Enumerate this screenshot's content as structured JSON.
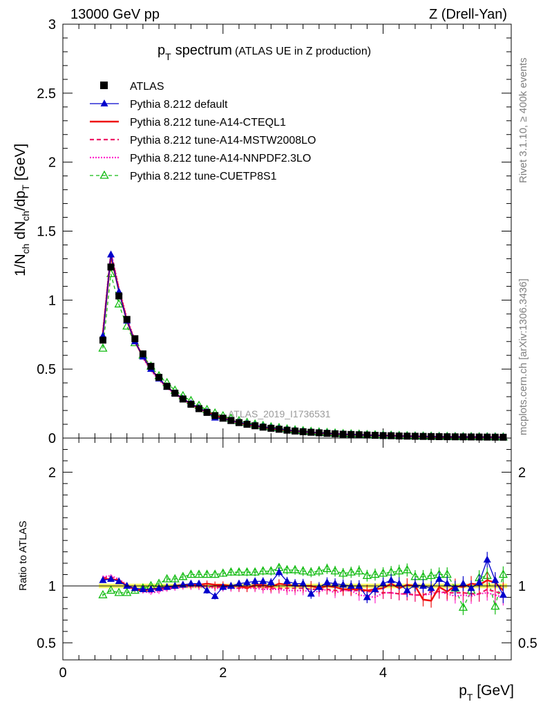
{
  "header": {
    "left": "13000 GeV pp",
    "right": "Z (Drell-Yan)"
  },
  "side_labels": {
    "rivet": "Rivet 3.1.10, ≥ 400k events",
    "mcplots": "mcplots.cern.ch [arXiv:1306.3436]"
  },
  "watermark": "ATLAS_2019_I1736531",
  "colors": {
    "atlas": "#000000",
    "default": "#0000cc",
    "cteql1": "#ee1111",
    "mstw": "#ee1166",
    "nnpdf": "#ff22cc",
    "cuetp8s1": "#11bb11",
    "band": "#ffff66"
  },
  "chart_data": [
    {
      "type": "line",
      "id": "main",
      "title_main": "p",
      "title_sub": "T",
      "title_rest": "spectrum",
      "title_paren": "(ATLAS UE in Z production)",
      "xlabel": "p_T [GeV]",
      "ylabel": "1/N_ch dN_ch/dp_T [GeV]",
      "xlim": [
        0,
        5.6
      ],
      "ylim": [
        0,
        3
      ],
      "yticks": [
        "0",
        "0.5",
        "1",
        "1.5",
        "2",
        "2.5",
        "3"
      ],
      "legend": [
        {
          "key": "atlas",
          "label": "ATLAS"
        },
        {
          "key": "default",
          "label": "Pythia 8.212 default"
        },
        {
          "key": "cteql1",
          "label": "Pythia 8.212 tune-A14-CTEQL1"
        },
        {
          "key": "mstw",
          "label": "Pythia 8.212 tune-A14-MSTW2008LO"
        },
        {
          "key": "nnpdf",
          "label": "Pythia 8.212 tune-A14-NNPDF2.3LO"
        },
        {
          "key": "cuetp8s1",
          "label": "Pythia 8.212 tune-CUETP8S1"
        }
      ],
      "x": [
        0.5,
        0.6,
        0.7,
        0.8,
        0.9,
        1.0,
        1.1,
        1.2,
        1.3,
        1.4,
        1.5,
        1.6,
        1.7,
        1.8,
        1.9,
        2.0,
        2.1,
        2.2,
        2.3,
        2.4,
        2.5,
        2.6,
        2.7,
        2.8,
        2.9,
        3.0,
        3.1,
        3.2,
        3.3,
        3.4,
        3.5,
        3.6,
        3.7,
        3.8,
        3.9,
        4.0,
        4.1,
        4.2,
        4.3,
        4.4,
        4.5,
        4.6,
        4.7,
        4.8,
        4.9,
        5.0,
        5.1,
        5.2,
        5.3,
        5.4,
        5.5
      ],
      "atlas": [
        0.71,
        1.24,
        1.03,
        0.86,
        0.72,
        0.61,
        0.52,
        0.44,
        0.375,
        0.325,
        0.283,
        0.245,
        0.213,
        0.186,
        0.163,
        0.144,
        0.127,
        0.112,
        0.1,
        0.089,
        0.079,
        0.071,
        0.064,
        0.057,
        0.051,
        0.046,
        0.042,
        0.038,
        0.034,
        0.031,
        0.028,
        0.026,
        0.024,
        0.022,
        0.02,
        0.018,
        0.017,
        0.015,
        0.014,
        0.013,
        0.012,
        0.011,
        0.01,
        0.0095,
        0.009,
        0.0085,
        0.008,
        0.0075,
        0.007,
        0.0065,
        0.006
      ],
      "default": [
        0.74,
        1.33,
        1.06,
        0.85,
        0.7,
        0.59,
        0.5,
        0.43,
        0.37,
        0.325,
        0.285,
        0.25,
        0.218,
        0.19,
        0.147,
        0.142,
        0.127,
        0.114,
        0.103,
        0.092,
        0.082,
        0.073,
        0.067,
        0.059,
        0.052,
        0.047,
        0.042,
        0.038,
        0.035,
        0.031,
        0.028,
        0.026,
        0.024,
        0.021,
        0.019,
        0.018,
        0.017,
        0.015,
        0.014,
        0.013,
        0.012,
        0.011,
        0.0105,
        0.0095,
        0.009,
        0.0085,
        0.008,
        0.0078,
        0.0074,
        0.0068,
        0.006
      ],
      "cteql1": [
        0.75,
        1.32,
        1.07,
        0.85,
        0.7,
        0.59,
        0.5,
        0.43,
        0.37,
        0.325,
        0.285,
        0.248,
        0.215,
        0.19,
        0.165,
        0.145,
        0.128,
        0.112,
        0.098,
        0.09,
        0.08,
        0.07,
        0.065,
        0.057,
        0.051,
        0.046,
        0.042,
        0.037,
        0.034,
        0.031,
        0.027,
        0.025,
        0.023,
        0.021,
        0.019,
        0.018,
        0.018,
        0.015,
        0.014,
        0.013,
        0.0105,
        0.0095,
        0.0095,
        0.009,
        0.009,
        0.0085,
        0.008,
        0.0075,
        0.0075,
        0.0068,
        0.0058
      ],
      "mstw": [
        0.76,
        1.34,
        1.08,
        0.86,
        0.7,
        0.59,
        0.5,
        0.43,
        0.37,
        0.322,
        0.282,
        0.246,
        0.213,
        0.186,
        0.162,
        0.143,
        0.126,
        0.11,
        0.1,
        0.088,
        0.078,
        0.07,
        0.063,
        0.056,
        0.05,
        0.045,
        0.041,
        0.037,
        0.033,
        0.03,
        0.027,
        0.025,
        0.023,
        0.021,
        0.019,
        0.017,
        0.016,
        0.014,
        0.013,
        0.012,
        0.011,
        0.0105,
        0.0095,
        0.009,
        0.0085,
        0.008,
        0.0075,
        0.007,
        0.0068,
        0.0062,
        0.0056
      ],
      "nnpdf": [
        0.77,
        1.35,
        1.09,
        0.87,
        0.71,
        0.58,
        0.49,
        0.42,
        0.365,
        0.32,
        0.28,
        0.244,
        0.212,
        0.185,
        0.161,
        0.142,
        0.125,
        0.11,
        0.098,
        0.087,
        0.077,
        0.069,
        0.062,
        0.055,
        0.049,
        0.044,
        0.04,
        0.036,
        0.033,
        0.029,
        0.027,
        0.025,
        0.022,
        0.02,
        0.018,
        0.017,
        0.016,
        0.014,
        0.013,
        0.012,
        0.011,
        0.0102,
        0.0095,
        0.0088,
        0.0082,
        0.0078,
        0.0073,
        0.007,
        0.0066,
        0.006,
        0.0054
      ],
      "cuetp8s1": [
        0.65,
        1.19,
        0.97,
        0.81,
        0.69,
        0.6,
        0.52,
        0.45,
        0.4,
        0.345,
        0.305,
        0.27,
        0.235,
        0.205,
        0.18,
        0.16,
        0.142,
        0.125,
        0.112,
        0.1,
        0.089,
        0.08,
        0.074,
        0.065,
        0.058,
        0.052,
        0.047,
        0.043,
        0.039,
        0.035,
        0.031,
        0.029,
        0.027,
        0.024,
        0.022,
        0.02,
        0.019,
        0.017,
        0.016,
        0.014,
        0.013,
        0.012,
        0.011,
        0.0105,
        0.0098,
        0.0092,
        0.0086,
        0.008,
        0.0076,
        0.0072,
        0.0064
      ]
    },
    {
      "type": "line",
      "id": "ratio",
      "ylabel": "Ratio to ATLAS",
      "xlabel": "p_T [GeV]",
      "xlim": [
        0,
        5.6
      ],
      "ylim": [
        0.35,
        2.3
      ],
      "yticks": [
        "0.5",
        "1",
        "2"
      ],
      "yticks_right": [
        "0.5",
        "1",
        "2"
      ],
      "xticks": [
        "0",
        "2",
        "4"
      ],
      "x": [
        0.5,
        0.6,
        0.7,
        0.8,
        0.9,
        1.0,
        1.1,
        1.2,
        1.3,
        1.4,
        1.5,
        1.6,
        1.7,
        1.8,
        1.9,
        2.0,
        2.1,
        2.2,
        2.3,
        2.4,
        2.5,
        2.6,
        2.7,
        2.8,
        2.9,
        3.0,
        3.1,
        3.2,
        3.3,
        3.4,
        3.5,
        3.6,
        3.7,
        3.8,
        3.9,
        4.0,
        4.1,
        4.2,
        4.3,
        4.4,
        4.5,
        4.6,
        4.7,
        4.8,
        4.9,
        5.0,
        5.1,
        5.2,
        5.3,
        5.4,
        5.5
      ],
      "default": [
        1.05,
        1.06,
        1.04,
        1.0,
        0.98,
        0.97,
        0.97,
        0.98,
        0.99,
        1.0,
        1.01,
        1.02,
        1.02,
        0.96,
        0.91,
        0.99,
        1.0,
        1.02,
        1.03,
        1.04,
        1.04,
        1.03,
        1.12,
        1.04,
        1.02,
        1.02,
        0.93,
        0.99,
        1.03,
        1.02,
        1.01,
        1.0,
        1.0,
        0.9,
        0.97,
        1.02,
        1.05,
        1.02,
        0.96,
        1.01,
        1.0,
        0.98,
        1.06,
        1.02,
        0.98,
        1.02,
        0.98,
        1.03,
        1.23,
        1.05,
        0.92
      ],
      "cteql1": [
        1.06,
        1.06,
        1.05,
        1.0,
        0.97,
        0.96,
        0.97,
        0.98,
        0.99,
        1.0,
        1.01,
        1.01,
        1.01,
        1.02,
        1.01,
        1.01,
        1.0,
        1.0,
        0.98,
        1.01,
        1.01,
        0.99,
        1.02,
        1.01,
        1.0,
        1.0,
        1.0,
        0.98,
        1.0,
        0.99,
        0.97,
        0.97,
        0.97,
        0.96,
        0.97,
        0.98,
        1.02,
        0.98,
        1.01,
        1.0,
        0.88,
        0.87,
        0.99,
        0.95,
        1.0,
        0.99,
        1.02,
        1.01,
        1.05,
        1.03,
        0.96
      ],
      "mstw": [
        1.07,
        1.08,
        1.05,
        1.0,
        0.97,
        0.96,
        0.96,
        0.97,
        0.98,
        0.99,
        1.0,
        1.0,
        1.0,
        1.0,
        0.99,
        0.99,
        0.99,
        0.98,
        1.0,
        0.99,
        0.99,
        0.98,
        0.98,
        0.98,
        0.98,
        0.98,
        0.97,
        0.97,
        0.97,
        0.96,
        0.96,
        0.96,
        0.96,
        0.95,
        0.95,
        0.94,
        0.94,
        0.93,
        0.93,
        0.92,
        0.92,
        0.95,
        0.95,
        0.94,
        0.94,
        0.94,
        0.93,
        0.93,
        0.97,
        0.95,
        0.93
      ],
      "nnpdf": [
        1.08,
        1.09,
        1.06,
        1.01,
        0.98,
        0.95,
        0.94,
        0.95,
        0.97,
        0.98,
        0.99,
        0.99,
        0.99,
        0.99,
        0.98,
        0.98,
        0.98,
        0.98,
        0.98,
        0.98,
        0.97,
        0.97,
        0.97,
        0.96,
        0.96,
        0.96,
        0.95,
        0.95,
        0.97,
        0.94,
        0.96,
        0.96,
        0.92,
        0.91,
        0.9,
        0.94,
        0.94,
        0.93,
        0.93,
        0.92,
        0.92,
        0.93,
        0.95,
        0.93,
        0.91,
        0.92,
        0.91,
        0.93,
        0.94,
        0.92,
        0.9
      ],
      "cuetp8s1": [
        0.92,
        0.96,
        0.94,
        0.94,
        0.96,
        0.98,
        1.0,
        1.02,
        1.06,
        1.06,
        1.08,
        1.1,
        1.1,
        1.1,
        1.1,
        1.11,
        1.12,
        1.12,
        1.12,
        1.12,
        1.13,
        1.13,
        1.16,
        1.14,
        1.14,
        1.13,
        1.12,
        1.13,
        1.15,
        1.13,
        1.11,
        1.12,
        1.13,
        1.09,
        1.1,
        1.11,
        1.12,
        1.13,
        1.14,
        1.08,
        1.08,
        1.09,
        1.1,
        1.1,
        0.98,
        0.81,
        0.96,
        1.07,
        1.09,
        0.82,
        1.1
      ]
    }
  ]
}
